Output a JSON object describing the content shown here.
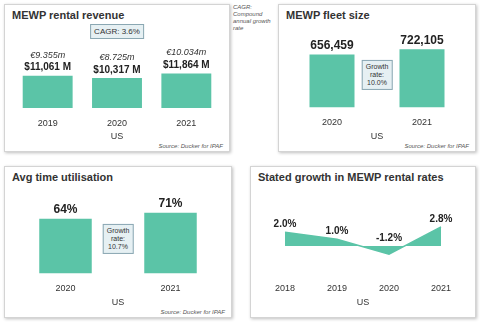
{
  "note": "CAGR: Compound annual growth rate",
  "chart_data": [
    {
      "type": "bar",
      "title": "MEWP rental revenue",
      "annotation": [
        "CAGR: 3.6%"
      ],
      "categories": [
        "2019",
        "2020",
        "2021"
      ],
      "values": [
        11061,
        10317,
        11864
      ],
      "value_labels": [
        "$11,061 M",
        "$10,317 M",
        "$11,864 M"
      ],
      "eur_labels": [
        "€9.355m",
        "€8.725m",
        "€10.034m"
      ],
      "color": "#5bc4a7",
      "ylim": [
        0,
        12000
      ],
      "xlabel": "US",
      "source": "Source: Ducker for IPAF",
      "data_labels": true,
      "grid": false,
      "tick_labels": "x"
    },
    {
      "type": "bar",
      "title": "MEWP fleet size",
      "annotation": [
        "Growth",
        "rate:",
        "10.0%"
      ],
      "categories": [
        "2020",
        "2021"
      ],
      "values": [
        656459,
        722105
      ],
      "value_labels": [
        "656,459",
        "722,105"
      ],
      "color": "#5bc4a7",
      "ylim": [
        0,
        800000
      ],
      "xlabel": "US",
      "source": "Source: Ducker for IPAF",
      "data_labels": true,
      "grid": false,
      "tick_labels": "x"
    },
    {
      "type": "bar",
      "title": "Avg time utilisation",
      "annotation": [
        "Growth",
        "rate:",
        "10.7%"
      ],
      "categories": [
        "2020",
        "2021"
      ],
      "values": [
        64,
        71
      ],
      "value_labels": [
        "64%",
        "71%"
      ],
      "color": "#5bc4a7",
      "ylim": [
        0,
        80
      ],
      "xlabel": "US",
      "source": "Source: Ducker for IPAF",
      "data_labels": true,
      "grid": false,
      "tick_labels": "x"
    },
    {
      "type": "line",
      "title": "Stated growth in MEWP rental rates",
      "categories": [
        "2018",
        "2019",
        "2020",
        "2021"
      ],
      "values": [
        2.0,
        1.0,
        -1.2,
        2.8
      ],
      "value_labels": [
        "2.0%",
        "1.0%",
        "-1.2%",
        "2.8%"
      ],
      "color": "#5bc4a7",
      "ylim": [
        -4,
        6
      ],
      "xlabel": "US",
      "data_labels": true,
      "grid": false,
      "tick_labels": "x"
    }
  ]
}
